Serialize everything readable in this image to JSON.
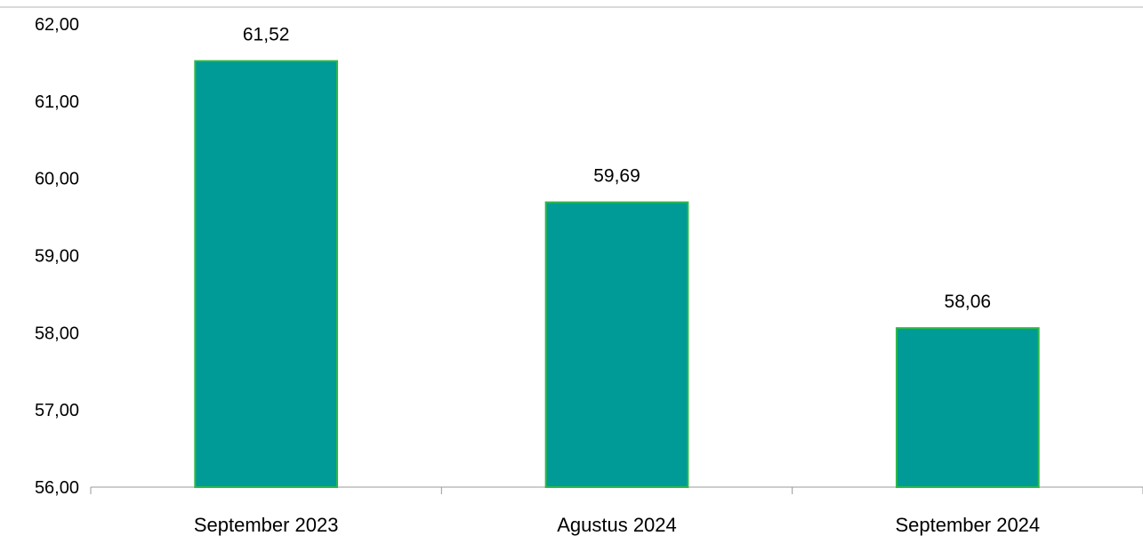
{
  "chart_data": {
    "type": "bar",
    "title": "",
    "xlabel": "",
    "ylabel": "",
    "categories": [
      "September 2023",
      "Agustus 2024",
      "September 2024"
    ],
    "values": [
      61.52,
      59.69,
      58.06
    ],
    "value_labels": [
      "61,52",
      "59,69",
      "58,06"
    ],
    "ylim": [
      56,
      62
    ],
    "yticks": [
      56,
      57,
      58,
      59,
      60,
      61,
      62
    ],
    "ytick_labels": [
      "56,00",
      "57,00",
      "58,00",
      "59,00",
      "60,00",
      "61,00",
      "62,00"
    ],
    "grid": false,
    "legend": "none",
    "colors": {
      "bar_fill": "#009B96",
      "bar_edge": "#2DB84B",
      "axis": "#999999",
      "top_border": "#D9D9D9"
    }
  }
}
